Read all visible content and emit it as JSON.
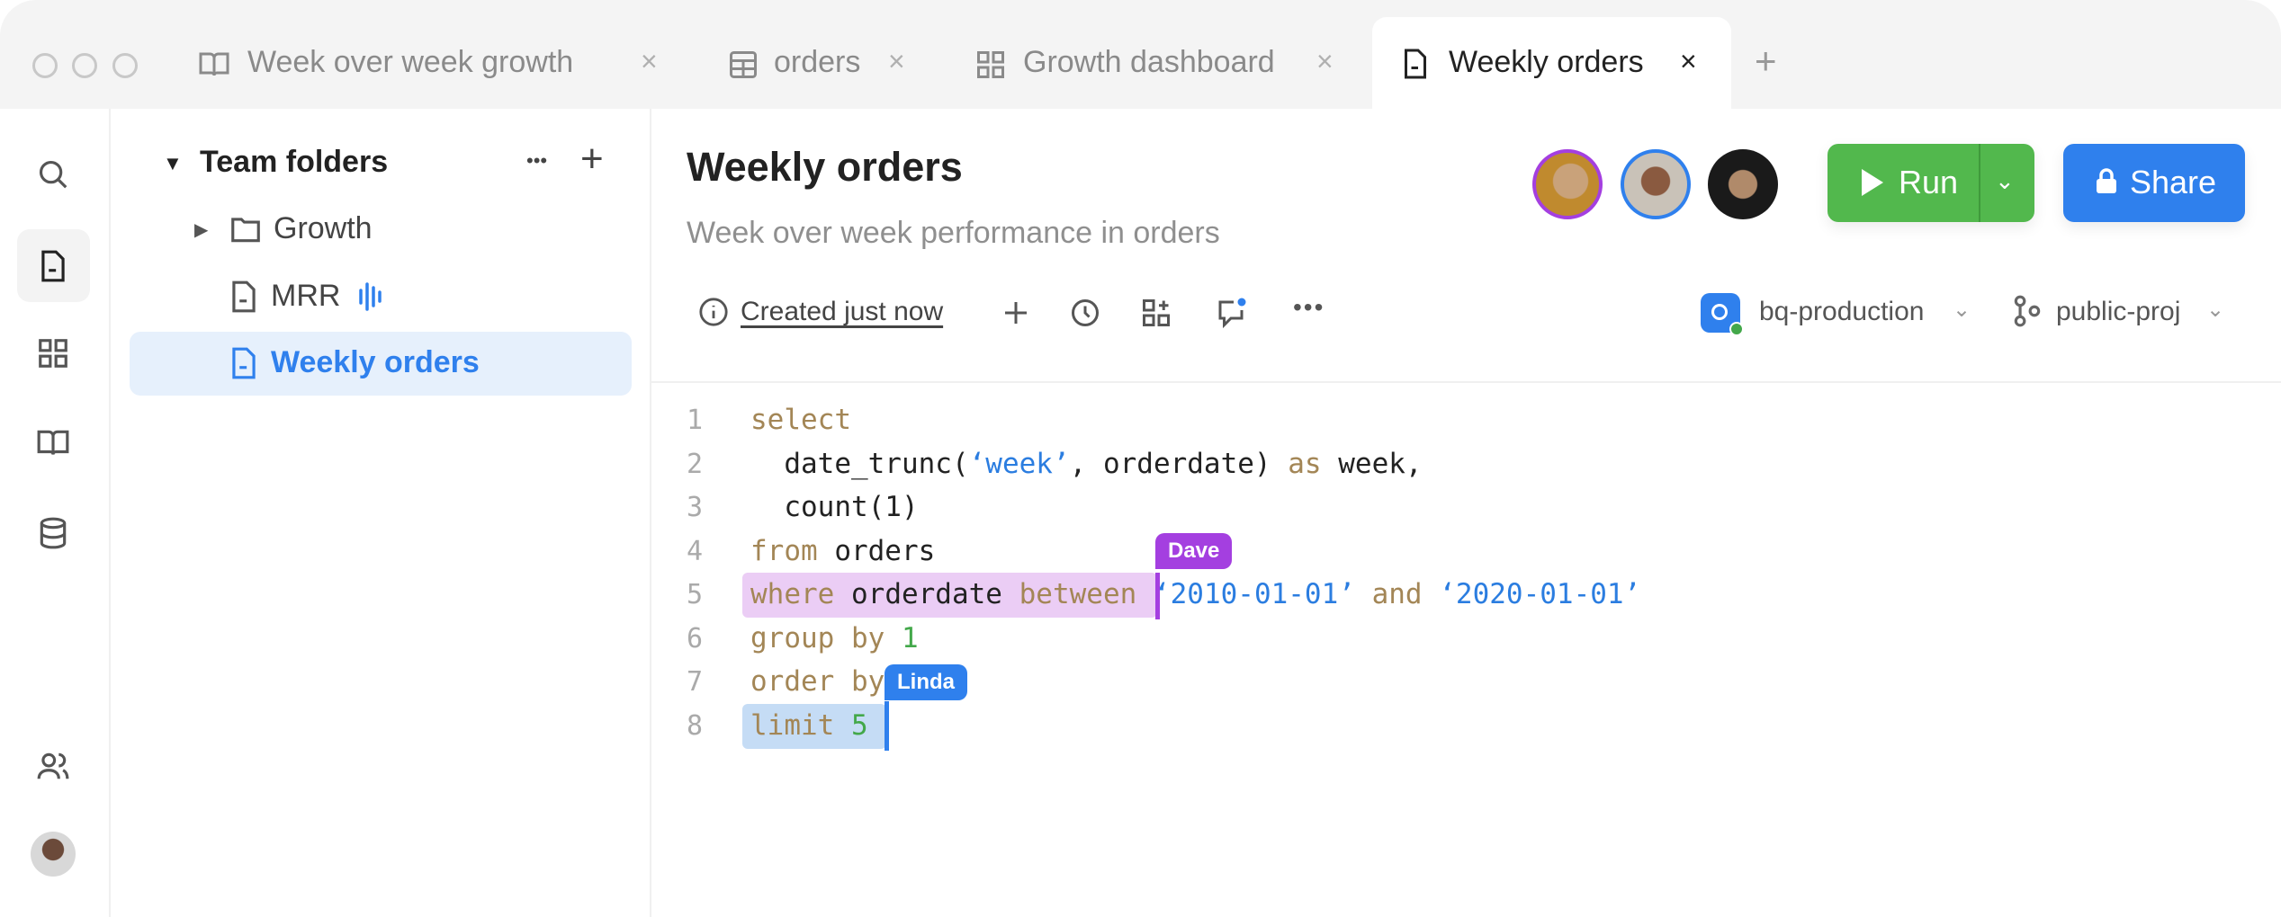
{
  "window": {
    "controls": [
      "close",
      "minimize",
      "maximize"
    ]
  },
  "tabs": [
    {
      "label": "Week over week growth",
      "icon": "book-icon",
      "active": false
    },
    {
      "label": "orders",
      "icon": "table-icon",
      "active": false
    },
    {
      "label": "Growth dashboard",
      "icon": "dashboard-icon",
      "active": false
    },
    {
      "label": "Weekly orders",
      "icon": "document-icon",
      "active": true
    }
  ],
  "tab_close": "×",
  "new_tab": "+",
  "rail": {
    "items": [
      "search-icon",
      "document-icon",
      "dashboard-icon",
      "book-icon",
      "database-icon",
      "users-icon",
      "avatar"
    ],
    "selected": "document-icon"
  },
  "folders": {
    "header": "Team folders",
    "more": "•••",
    "add": "+",
    "items": [
      {
        "label": "Growth",
        "icon": "folder-icon"
      },
      {
        "label": "MRR",
        "icon": "document-icon",
        "badge": "live-audio-icon"
      },
      {
        "label": "Weekly orders",
        "icon": "document-icon",
        "selected": true
      }
    ]
  },
  "doc": {
    "title": "Weekly orders",
    "subtitle": "Week over week performance in orders",
    "created": "Created just now",
    "connection": "bq-production",
    "project": "public-proj"
  },
  "collaborators": [
    {
      "ring": "#a43fe0"
    },
    {
      "ring": "#2f80ed"
    },
    {
      "ring": "none"
    }
  ],
  "buttons": {
    "run": "Run",
    "share": "Share"
  },
  "colors": {
    "run": "#52b84d",
    "share": "#2f80ed",
    "accent": "#2f80ed",
    "dave": "#a43fe0",
    "linda": "#2f80ed",
    "keyword": "#a38656",
    "string": "#2b7de0",
    "number": "#43a84a"
  },
  "editor": {
    "lines": [
      [
        {
          "t": "select",
          "c": "kw"
        }
      ],
      [
        {
          "t": "  date_trunc(",
          "c": "fn"
        },
        {
          "t": "‘week’",
          "c": "str"
        },
        {
          "t": ", orderdate) ",
          "c": "fn"
        },
        {
          "t": "as",
          "c": "kw"
        },
        {
          "t": " week,",
          "c": "fn"
        }
      ],
      [
        {
          "t": "  count(1)",
          "c": "fn"
        }
      ],
      [
        {
          "t": "from",
          "c": "kw"
        },
        {
          "t": " orders",
          "c": "fn"
        }
      ],
      [
        {
          "t": "where",
          "c": "kw"
        },
        {
          "t": " orderdate ",
          "c": "fn"
        },
        {
          "t": "between",
          "c": "kw"
        },
        {
          "t": " ‘2010-01-01’",
          "c": "str"
        },
        {
          "t": " and ",
          "c": "kw"
        },
        {
          "t": "‘2020-01-01’",
          "c": "str"
        }
      ],
      [
        {
          "t": "group by ",
          "c": "kw"
        },
        {
          "t": "1",
          "c": "num"
        }
      ],
      [
        {
          "t": "order by",
          "c": "kw"
        }
      ],
      [
        {
          "t": "limit ",
          "c": "kw"
        },
        {
          "t": "5",
          "c": "num"
        }
      ]
    ],
    "cursors": [
      {
        "user": "Dave",
        "line": 5
      },
      {
        "user": "Linda",
        "line": 8
      }
    ]
  }
}
